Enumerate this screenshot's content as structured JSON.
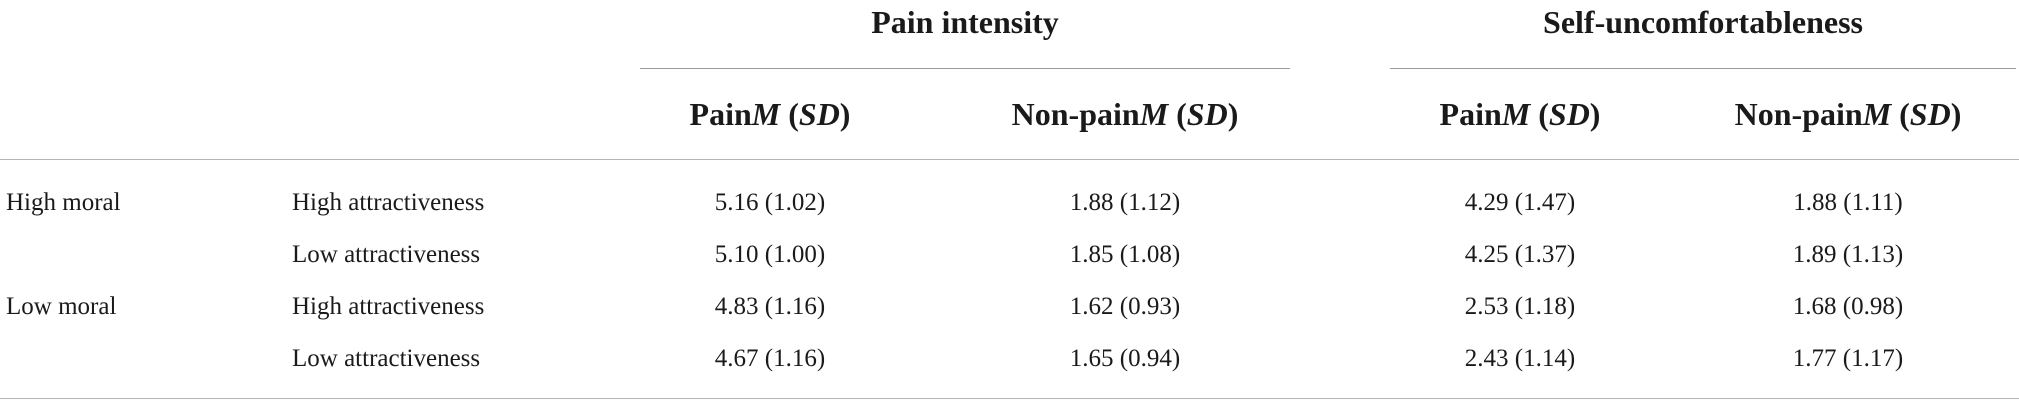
{
  "table": {
    "group_headers": [
      {
        "label": "Pain intensity"
      },
      {
        "label": "Self-uncomfortableness"
      }
    ],
    "column_headers": [
      {
        "main": "Pain",
        "stat_m": "M",
        "stat_sd": "SD"
      },
      {
        "main": "Non-pain",
        "stat_m": "M",
        "stat_sd": "SD"
      },
      {
        "main": "Pain",
        "stat_m": "M",
        "stat_sd": "SD"
      },
      {
        "main": "Non-pain",
        "stat_m": "M",
        "stat_sd": "SD"
      }
    ],
    "rows": [
      {
        "group": "High moral",
        "condition": "High attractiveness",
        "values": [
          "5.16 (1.02)",
          "1.88 (1.12)",
          "4.29 (1.47)",
          "1.88 (1.11)"
        ]
      },
      {
        "group": "",
        "condition": "Low attractiveness",
        "values": [
          "5.10 (1.00)",
          "1.85 (1.08)",
          "4.25 (1.37)",
          "1.89 (1.13)"
        ]
      },
      {
        "group": "Low moral",
        "condition": "High attractiveness",
        "values": [
          "4.83 (1.16)",
          "1.62 (0.93)",
          "2.53 (1.18)",
          "1.68 (0.98)"
        ]
      },
      {
        "group": "",
        "condition": "Low attractiveness",
        "values": [
          "4.67 (1.16)",
          "1.65 (0.94)",
          "2.43 (1.14)",
          "1.77 (1.17)"
        ]
      }
    ]
  }
}
